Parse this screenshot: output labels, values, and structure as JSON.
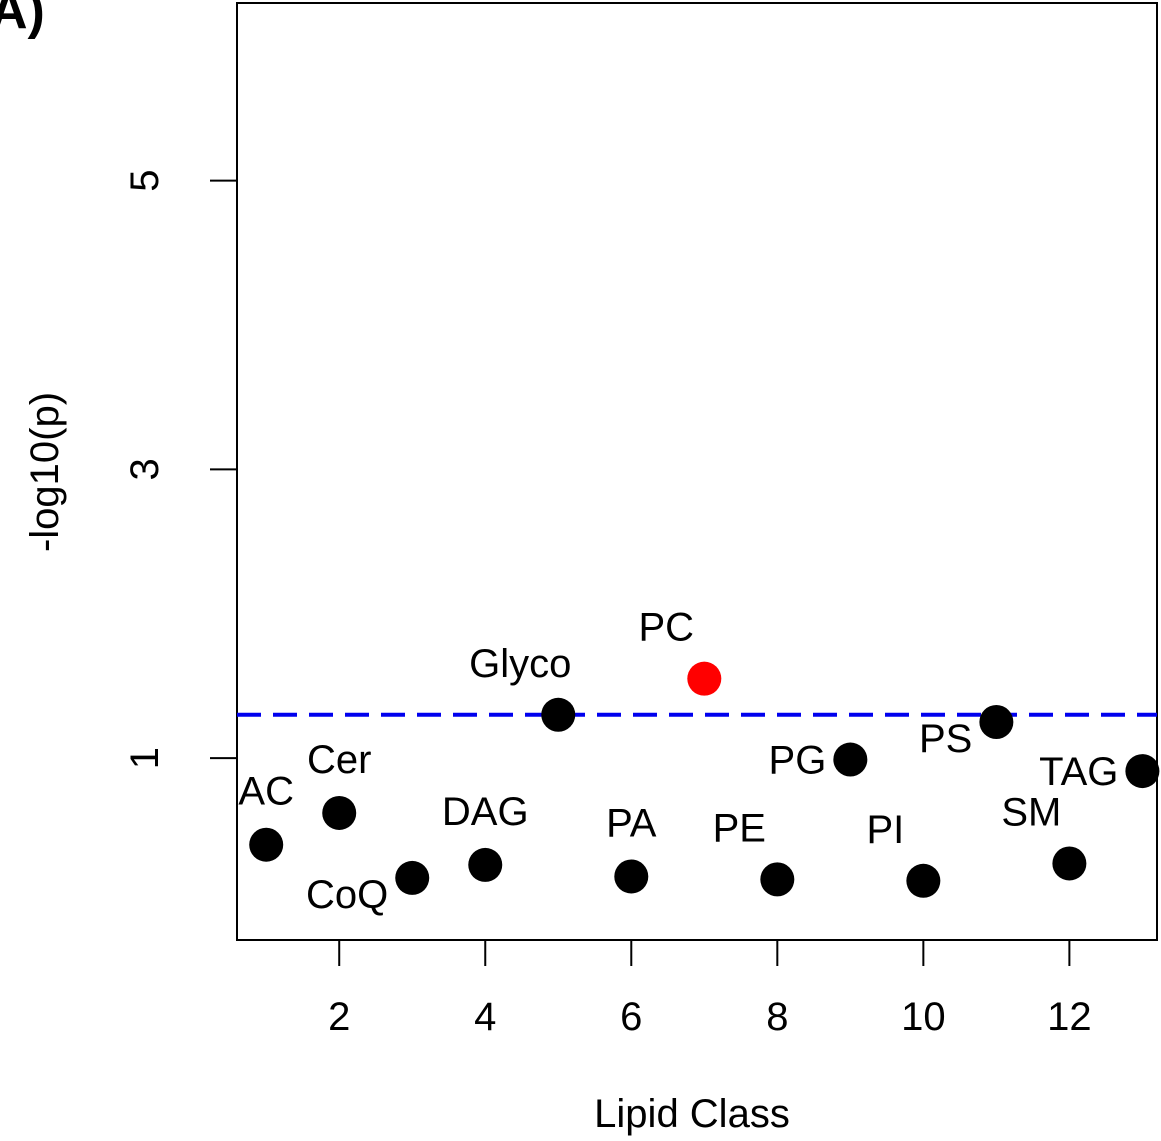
{
  "panel_label": "A)",
  "chart_data": {
    "type": "scatter",
    "xlabel": "Lipid Class",
    "ylabel": "-log10(p)",
    "xlim": [
      0.6,
      13.2
    ],
    "ylim": [
      -0.26,
      6.23
    ],
    "x_ticks": [
      2,
      4,
      6,
      8,
      10,
      12
    ],
    "x_tick_labels": [
      "2",
      "4",
      "6",
      "8",
      "10",
      "12"
    ],
    "y_ticks": [
      1,
      3,
      5
    ],
    "y_tick_labels": [
      "1",
      "3",
      "5"
    ],
    "threshold": 1.3,
    "threshold_color": "#0000ee",
    "point_color": "#000000",
    "highlight_color": "#ff0000",
    "grid": false,
    "points": [
      {
        "label": "AC",
        "x": 1,
        "y": 0.4,
        "highlight": false,
        "label_pos": "above"
      },
      {
        "label": "Cer",
        "x": 2,
        "y": 0.62,
        "highlight": false,
        "label_pos": "above"
      },
      {
        "label": "CoQ",
        "x": 3,
        "y": 0.17,
        "highlight": false,
        "label_pos": "left-below"
      },
      {
        "label": "DAG",
        "x": 4,
        "y": 0.26,
        "highlight": false,
        "label_pos": "above"
      },
      {
        "label": "Glyco",
        "x": 5,
        "y": 1.3,
        "highlight": false,
        "label_pos": "above-left"
      },
      {
        "label": "PA",
        "x": 6,
        "y": 0.18,
        "highlight": false,
        "label_pos": "above"
      },
      {
        "label": "PC",
        "x": 7,
        "y": 1.55,
        "highlight": true,
        "label_pos": "above-left"
      },
      {
        "label": "PE",
        "x": 8,
        "y": 0.16,
        "highlight": false,
        "label_pos": "above-left"
      },
      {
        "label": "PG",
        "x": 9,
        "y": 0.99,
        "highlight": false,
        "label_pos": "left"
      },
      {
        "label": "PI",
        "x": 10,
        "y": 0.15,
        "highlight": false,
        "label_pos": "above-left"
      },
      {
        "label": "PS",
        "x": 11,
        "y": 1.25,
        "highlight": false,
        "label_pos": "left-below"
      },
      {
        "label": "SM",
        "x": 12,
        "y": 0.27,
        "highlight": false,
        "label_pos": "above-left"
      },
      {
        "label": "TAG",
        "x": 13,
        "y": 0.91,
        "highlight": false,
        "label_pos": "left"
      }
    ]
  }
}
